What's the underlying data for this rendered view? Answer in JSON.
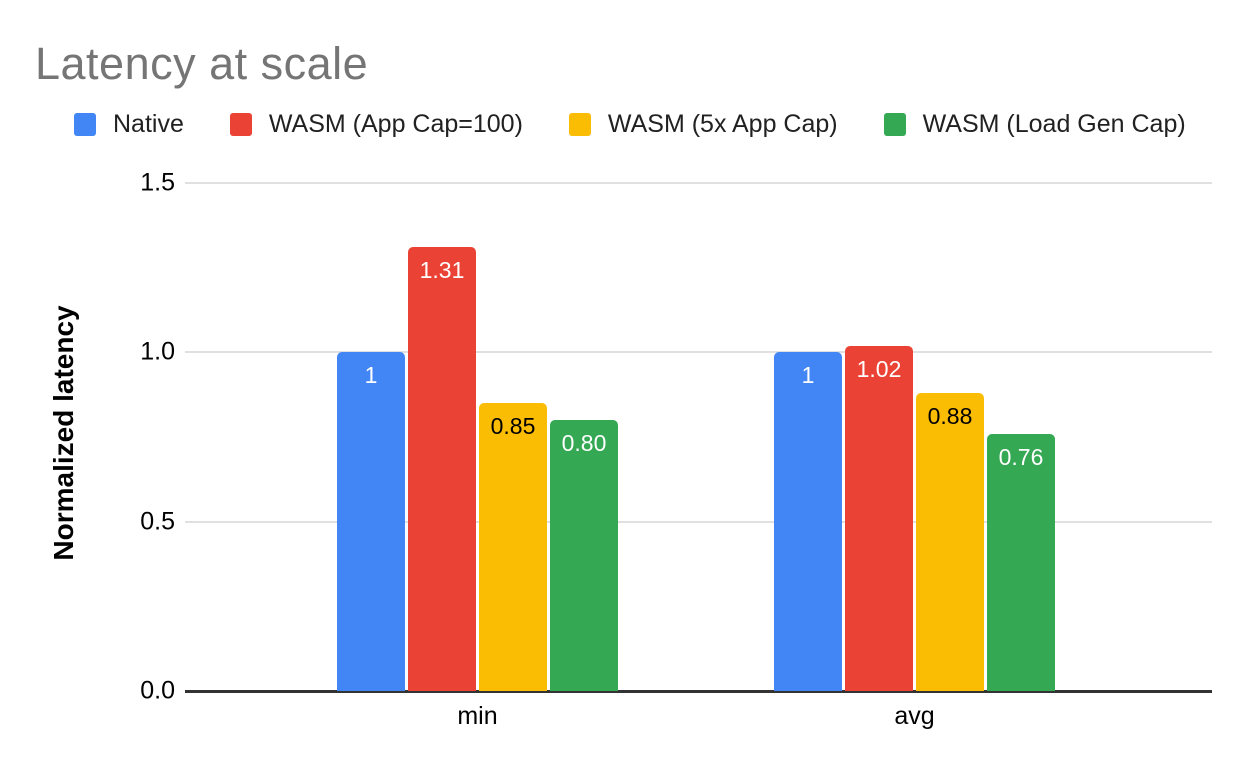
{
  "title": "Latency at scale",
  "colors": {
    "title_text": "#757575",
    "gridline": "#e0e0e0",
    "axis_baseline": "#333333",
    "axis_text": "#000000",
    "legend_text": "#212121",
    "background": "#ffffff"
  },
  "chart_data": {
    "type": "bar",
    "title": "Latency at scale",
    "categories": [
      "min",
      "avg"
    ],
    "series": [
      {
        "name": "Native",
        "color": "#4285F4",
        "label_color": "#ffffff",
        "values": [
          1,
          1
        ],
        "labels": [
          "1",
          "1"
        ]
      },
      {
        "name": "WASM (App Cap=100)",
        "color": "#EA4335",
        "label_color": "#ffffff",
        "values": [
          1.31,
          1.02
        ],
        "labels": [
          "1.31",
          "1.02"
        ]
      },
      {
        "name": "WASM (5x App Cap)",
        "color": "#FBBC04",
        "label_color": "#000000",
        "values": [
          0.85,
          0.88
        ],
        "labels": [
          "0.85",
          "0.88"
        ]
      },
      {
        "name": "WASM (Load Gen Cap)",
        "color": "#34A853",
        "label_color": "#ffffff",
        "values": [
          0.8,
          0.76
        ],
        "labels": [
          "0.80",
          "0.76"
        ]
      }
    ],
    "xlabel": "",
    "ylabel": "Normalized latency",
    "ylim": [
      0,
      1.5
    ],
    "yticks": [
      {
        "value": 0.0,
        "label": "0.0"
      },
      {
        "value": 0.5,
        "label": "0.5"
      },
      {
        "value": 1.0,
        "label": "1.0"
      },
      {
        "value": 1.5,
        "label": "1.5"
      }
    ],
    "grid": true,
    "legend_position": "top",
    "value_labels_shown": true
  }
}
